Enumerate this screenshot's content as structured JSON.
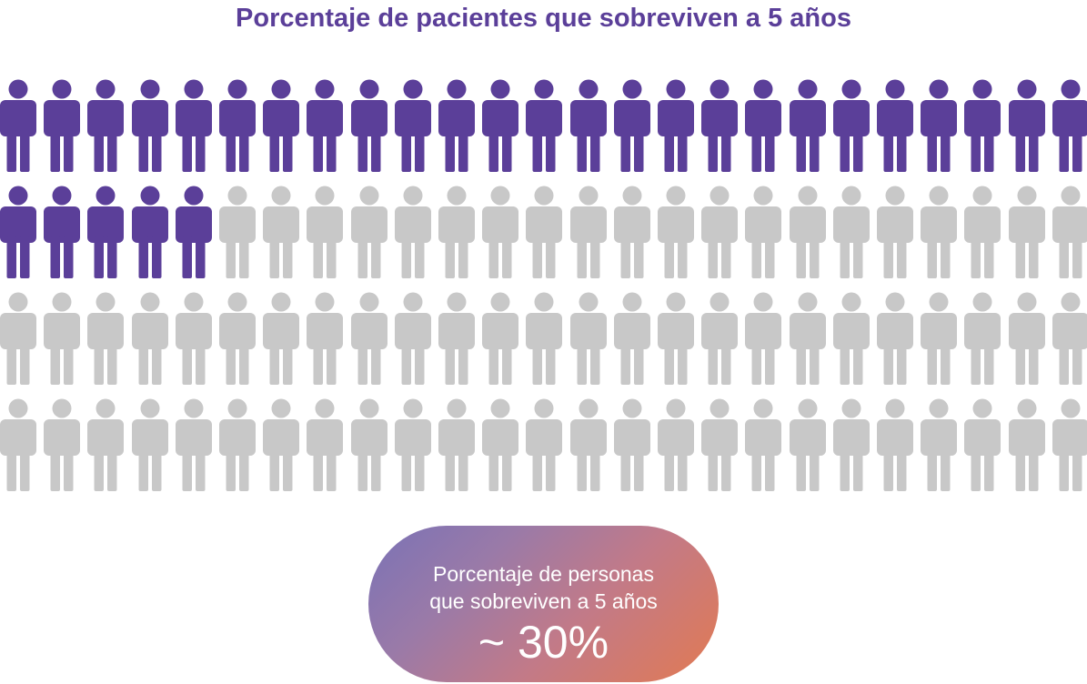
{
  "title": "Porcentaje de pacientes que sobreviven a 5 años",
  "chart_data": {
    "type": "pictograph",
    "total_icons": 100,
    "highlighted_icons": 30,
    "rows": 4,
    "columns": 25,
    "highlight_color": "#5b3f99",
    "base_color": "#c8c8c8",
    "title": "Porcentaje de pacientes que sobreviven a 5 años"
  },
  "callout": {
    "line1": "Porcentaje de personas",
    "line2": "que sobreviven a 5 años",
    "value": "~ 30%",
    "gradient_start": "#7a72b6",
    "gradient_end": "#e27a52"
  }
}
